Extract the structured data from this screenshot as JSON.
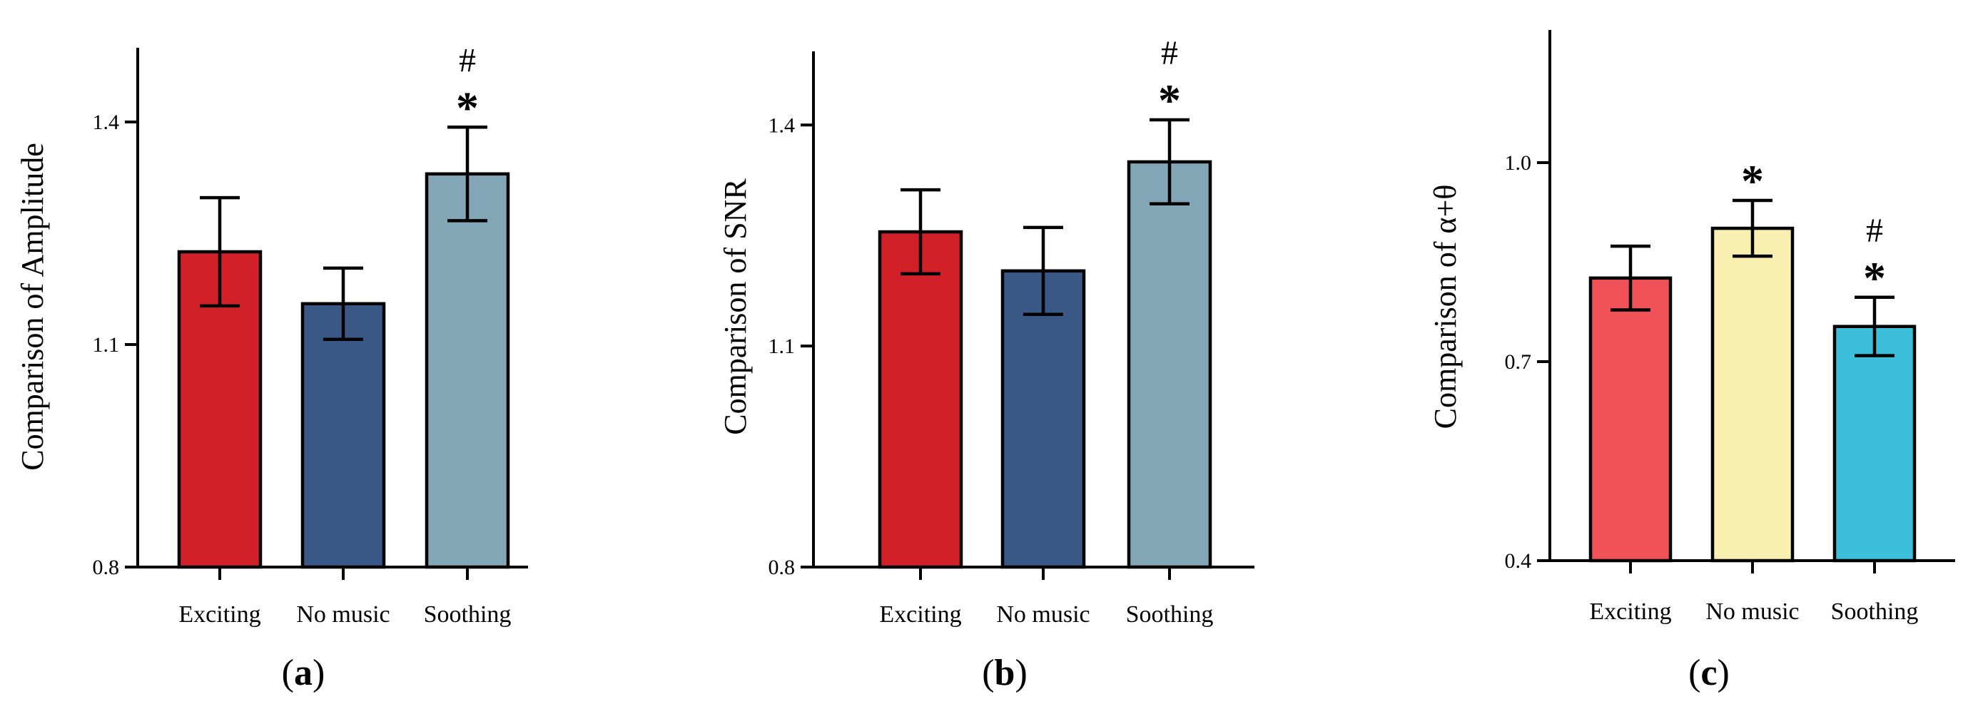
{
  "chart_data": [
    {
      "type": "bar",
      "panel": "a",
      "panel_label": "(a)",
      "ylabel": "Comparison of Amplitude",
      "ylim": [
        0.8,
        1.5
      ],
      "yticks": [
        "0.8",
        "1.1",
        "1.4"
      ],
      "ytick_values": [
        0.8,
        1.1,
        1.4
      ],
      "categories": [
        "Exciting",
        "No music",
        "Soothing"
      ],
      "values": [
        1.225,
        1.155,
        1.33
      ],
      "errors": [
        0.073,
        0.048,
        0.063
      ],
      "colors": [
        "#d22029",
        "#3a5886",
        "#82a6b6"
      ],
      "annotations": [
        {
          "category": "Soothing",
          "marks": [
            "#",
            "*"
          ]
        }
      ]
    },
    {
      "type": "bar",
      "panel": "b",
      "panel_label": "(b)",
      "ylabel": "Comparison of SNR",
      "ylim": [
        0.8,
        1.5
      ],
      "yticks": [
        "0.8",
        "1.1",
        "1.4"
      ],
      "ytick_values": [
        0.8,
        1.1,
        1.4
      ],
      "categories": [
        "Exciting",
        "No music",
        "Soothing"
      ],
      "values": [
        1.255,
        1.202,
        1.35
      ],
      "errors": [
        0.057,
        0.059,
        0.057
      ],
      "colors": [
        "#d22029",
        "#3a5886",
        "#82a6b6"
      ],
      "annotations": [
        {
          "category": "Soothing",
          "marks": [
            "#",
            "*"
          ]
        }
      ]
    },
    {
      "type": "bar",
      "panel": "c",
      "panel_label": "(c)",
      "ylabel": "Comparison of  α+θ",
      "ylim": [
        0.4,
        1.2
      ],
      "yticks": [
        "0.4",
        "0.7",
        "1.0"
      ],
      "ytick_values": [
        0.4,
        0.7,
        1.0
      ],
      "categories": [
        "Exciting",
        "No music",
        "Soothing"
      ],
      "values": [
        0.826,
        0.901,
        0.753
      ],
      "errors": [
        0.048,
        0.042,
        0.044
      ],
      "colors": [
        "#f05257",
        "#f8efb0",
        "#3bbfda"
      ],
      "annotations": [
        {
          "category": "No music",
          "marks": [
            "*"
          ]
        },
        {
          "category": "Soothing",
          "marks": [
            "#",
            "*"
          ]
        }
      ]
    }
  ]
}
